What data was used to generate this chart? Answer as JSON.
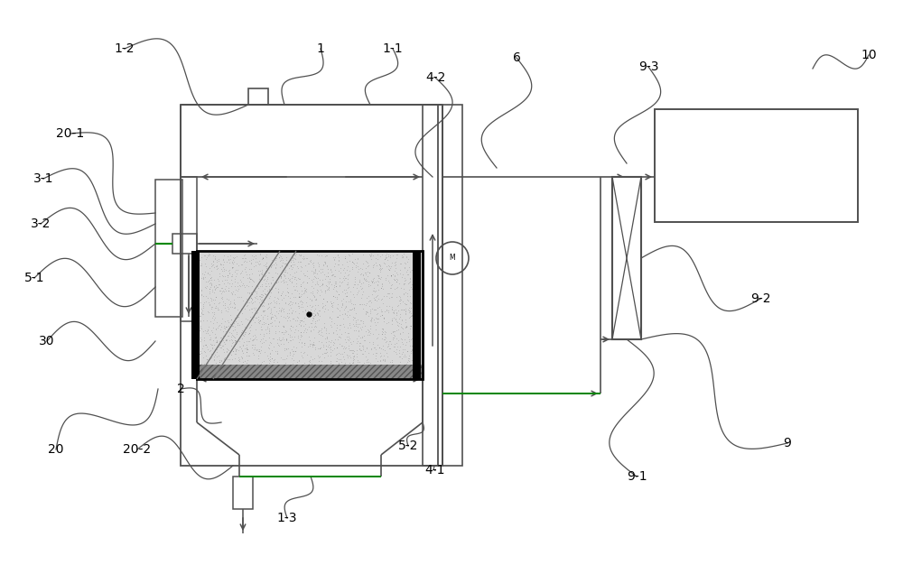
{
  "bg_color": "#ffffff",
  "lc": "#505050",
  "blk": "#000000",
  "green": "#008800",
  "fig_width": 10.0,
  "fig_height": 6.36,
  "dpi": 100
}
